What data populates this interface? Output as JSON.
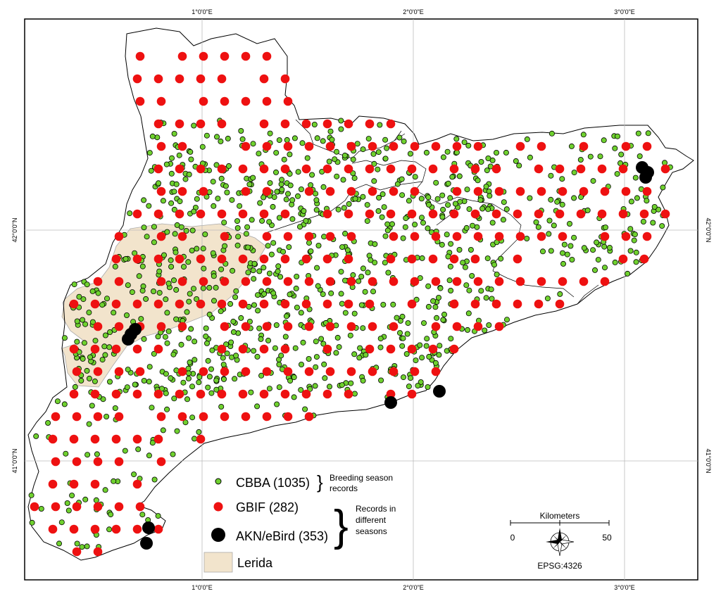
{
  "map": {
    "lon_labels": [
      "1°0'0\"E",
      "2°0'0\"E",
      "3°0'0\"E"
    ],
    "lat_labels": [
      "42°0'0\"N",
      "41°0'0\"N"
    ],
    "grid": true,
    "colors": {
      "cbba": "#6fd12f",
      "gbif": "#ee1111",
      "akn": "#000000",
      "lerida": "#f2e4cc",
      "border": "#000000"
    }
  },
  "legend": {
    "cbba": "CBBA (1035)",
    "gbif": "GBIF (282)",
    "akn": "AKN/eBird (353)",
    "lerida": "Lerida",
    "breeding_line1": "Breeding season",
    "breeding_line2": "records",
    "seasons_line1": "Records in",
    "seasons_line2": "different",
    "seasons_line3": "seasons"
  },
  "scalebar": {
    "title": "Kilometers",
    "start": "0",
    "end": "50",
    "epsg": "EPSG:4326"
  }
}
